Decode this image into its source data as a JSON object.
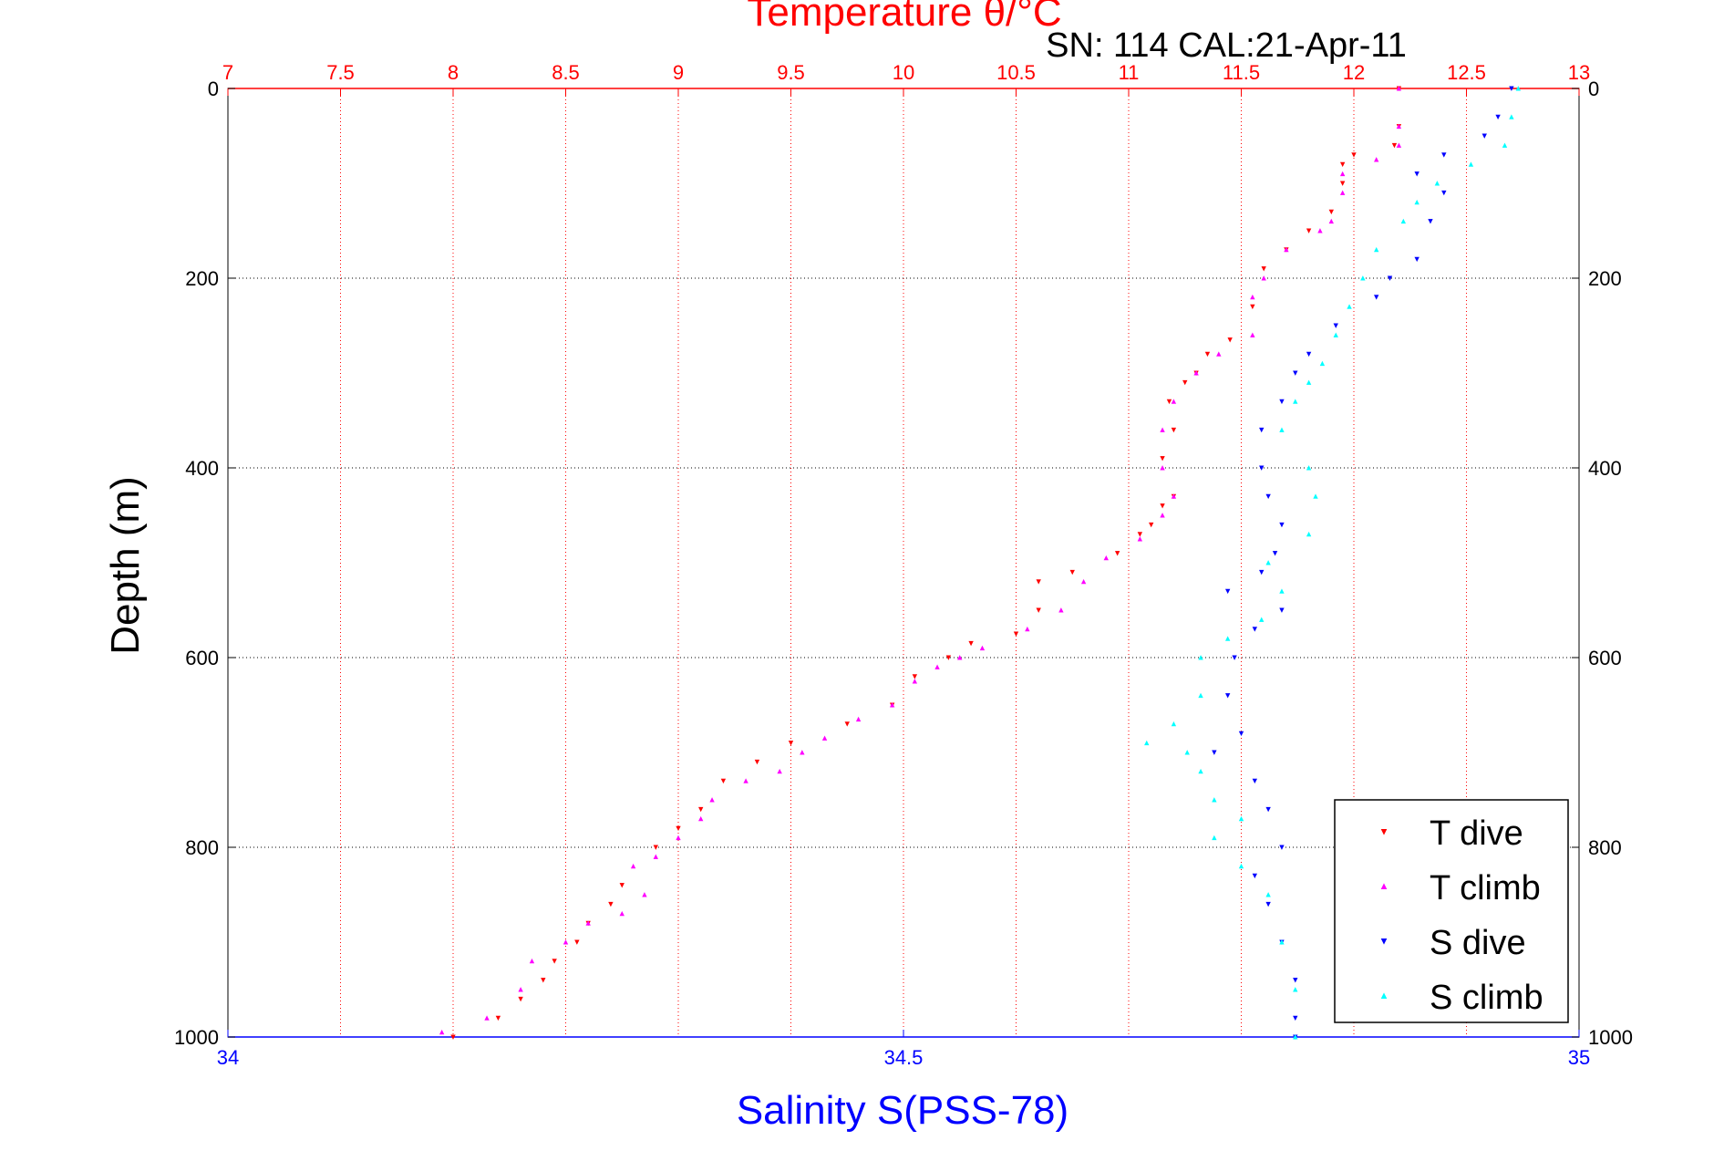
{
  "chart_data": {
    "type": "scatter",
    "title": "Temperature θ/°C",
    "annotation": "SN: 114  CAL:21-Apr-11",
    "xlabel_top": "Temperature θ/°C",
    "xlabel_bottom": "Salinity S(PSS-78)",
    "ylabel": "Depth (m)",
    "top_axis": {
      "range": [
        7,
        13
      ],
      "ticks": [
        "7",
        "7.5",
        "8",
        "8.5",
        "9",
        "9.5",
        "10",
        "10.5",
        "11",
        "11.5",
        "12",
        "12.5",
        "13"
      ]
    },
    "bottom_axis": {
      "range": [
        34,
        35
      ],
      "ticks": [
        "34",
        "34.5",
        "35"
      ]
    },
    "y_axis": {
      "range": [
        0,
        1000
      ],
      "reversed": true,
      "ticks": [
        "0",
        "200",
        "400",
        "600",
        "800",
        "1000"
      ]
    },
    "grid": true,
    "legend_position": "bottom-right",
    "series": [
      {
        "name": "T dive",
        "axis": "temperature",
        "color": "#ff0000",
        "marker": "triangle-down",
        "points": [
          [
            12.2,
            0
          ],
          [
            12.2,
            40
          ],
          [
            12.18,
            60
          ],
          [
            12.0,
            70
          ],
          [
            11.95,
            80
          ],
          [
            11.95,
            100
          ],
          [
            11.9,
            130
          ],
          [
            11.8,
            150
          ],
          [
            11.7,
            170
          ],
          [
            11.6,
            190
          ],
          [
            11.55,
            230
          ],
          [
            11.45,
            265
          ],
          [
            11.35,
            280
          ],
          [
            11.3,
            300
          ],
          [
            11.25,
            310
          ],
          [
            11.18,
            330
          ],
          [
            11.2,
            360
          ],
          [
            11.15,
            390
          ],
          [
            11.2,
            430
          ],
          [
            11.15,
            440
          ],
          [
            11.1,
            460
          ],
          [
            11.05,
            470
          ],
          [
            10.95,
            490
          ],
          [
            10.75,
            510
          ],
          [
            10.6,
            520
          ],
          [
            10.6,
            550
          ],
          [
            10.5,
            575
          ],
          [
            10.3,
            585
          ],
          [
            10.2,
            600
          ],
          [
            10.05,
            620
          ],
          [
            9.95,
            650
          ],
          [
            9.75,
            670
          ],
          [
            9.5,
            690
          ],
          [
            9.35,
            710
          ],
          [
            9.2,
            730
          ],
          [
            9.1,
            760
          ],
          [
            9.0,
            780
          ],
          [
            8.9,
            800
          ],
          [
            8.75,
            840
          ],
          [
            8.7,
            860
          ],
          [
            8.6,
            880
          ],
          [
            8.55,
            900
          ],
          [
            8.45,
            920
          ],
          [
            8.4,
            940
          ],
          [
            8.3,
            960
          ],
          [
            8.2,
            980
          ],
          [
            8.0,
            1000
          ]
        ]
      },
      {
        "name": "T climb",
        "axis": "temperature",
        "color": "#ff00ff",
        "marker": "triangle-up",
        "points": [
          [
            12.2,
            0
          ],
          [
            12.2,
            40
          ],
          [
            12.2,
            60
          ],
          [
            12.1,
            75
          ],
          [
            11.95,
            90
          ],
          [
            11.95,
            110
          ],
          [
            11.9,
            140
          ],
          [
            11.85,
            150
          ],
          [
            11.7,
            170
          ],
          [
            11.6,
            200
          ],
          [
            11.55,
            220
          ],
          [
            11.55,
            260
          ],
          [
            11.4,
            280
          ],
          [
            11.3,
            300
          ],
          [
            11.2,
            330
          ],
          [
            11.15,
            360
          ],
          [
            11.15,
            400
          ],
          [
            11.2,
            430
          ],
          [
            11.15,
            450
          ],
          [
            11.05,
            475
          ],
          [
            10.9,
            495
          ],
          [
            10.8,
            520
          ],
          [
            10.7,
            550
          ],
          [
            10.55,
            570
          ],
          [
            10.35,
            590
          ],
          [
            10.25,
            600
          ],
          [
            10.15,
            610
          ],
          [
            10.05,
            625
          ],
          [
            9.95,
            650
          ],
          [
            9.8,
            665
          ],
          [
            9.65,
            685
          ],
          [
            9.55,
            700
          ],
          [
            9.45,
            720
          ],
          [
            9.3,
            730
          ],
          [
            9.15,
            750
          ],
          [
            9.1,
            770
          ],
          [
            9.0,
            790
          ],
          [
            8.9,
            810
          ],
          [
            8.8,
            820
          ],
          [
            8.85,
            850
          ],
          [
            8.75,
            870
          ],
          [
            8.6,
            880
          ],
          [
            8.5,
            900
          ],
          [
            8.35,
            920
          ],
          [
            8.3,
            950
          ],
          [
            8.15,
            980
          ],
          [
            7.95,
            995
          ]
        ]
      },
      {
        "name": "S dive",
        "axis": "salinity",
        "color": "#0000ff",
        "marker": "triangle-down",
        "points": [
          [
            34.95,
            0
          ],
          [
            34.94,
            30
          ],
          [
            34.93,
            50
          ],
          [
            34.9,
            70
          ],
          [
            34.88,
            90
          ],
          [
            34.9,
            110
          ],
          [
            34.89,
            140
          ],
          [
            34.88,
            180
          ],
          [
            34.86,
            200
          ],
          [
            34.85,
            220
          ],
          [
            34.82,
            250
          ],
          [
            34.8,
            280
          ],
          [
            34.79,
            300
          ],
          [
            34.78,
            330
          ],
          [
            34.765,
            360
          ],
          [
            34.765,
            400
          ],
          [
            34.77,
            430
          ],
          [
            34.78,
            460
          ],
          [
            34.775,
            490
          ],
          [
            34.765,
            510
          ],
          [
            34.74,
            530
          ],
          [
            34.78,
            550
          ],
          [
            34.76,
            570
          ],
          [
            34.745,
            600
          ],
          [
            34.74,
            640
          ],
          [
            34.75,
            680
          ],
          [
            34.73,
            700
          ],
          [
            34.76,
            730
          ],
          [
            34.77,
            760
          ],
          [
            34.78,
            800
          ],
          [
            34.76,
            830
          ],
          [
            34.77,
            860
          ],
          [
            34.78,
            900
          ],
          [
            34.79,
            940
          ],
          [
            34.79,
            980
          ],
          [
            34.79,
            1000
          ]
        ]
      },
      {
        "name": "S climb",
        "axis": "salinity",
        "color": "#00ffff",
        "marker": "triangle-up",
        "points": [
          [
            34.955,
            0
          ],
          [
            34.95,
            30
          ],
          [
            34.945,
            60
          ],
          [
            34.92,
            80
          ],
          [
            34.895,
            100
          ],
          [
            34.88,
            120
          ],
          [
            34.87,
            140
          ],
          [
            34.85,
            170
          ],
          [
            34.84,
            200
          ],
          [
            34.83,
            230
          ],
          [
            34.82,
            260
          ],
          [
            34.81,
            290
          ],
          [
            34.8,
            310
          ],
          [
            34.79,
            330
          ],
          [
            34.78,
            360
          ],
          [
            34.8,
            400
          ],
          [
            34.805,
            430
          ],
          [
            34.8,
            470
          ],
          [
            34.77,
            500
          ],
          [
            34.78,
            530
          ],
          [
            34.765,
            560
          ],
          [
            34.74,
            580
          ],
          [
            34.72,
            600
          ],
          [
            34.72,
            640
          ],
          [
            34.7,
            670
          ],
          [
            34.68,
            690
          ],
          [
            34.71,
            700
          ],
          [
            34.72,
            720
          ],
          [
            34.73,
            750
          ],
          [
            34.75,
            770
          ],
          [
            34.73,
            790
          ],
          [
            34.75,
            820
          ],
          [
            34.77,
            850
          ],
          [
            34.78,
            900
          ],
          [
            34.79,
            950
          ],
          [
            34.79,
            1000
          ]
        ]
      }
    ]
  }
}
